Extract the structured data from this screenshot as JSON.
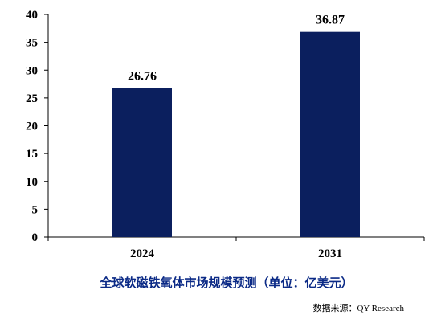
{
  "chart_data": {
    "type": "bar",
    "categories": [
      "2024",
      "2031"
    ],
    "values": [
      26.76,
      36.87
    ],
    "data_labels": [
      "26.76",
      "36.87"
    ],
    "title": "全球软磁铁氧体市场规模预测（单位：亿美元）",
    "xlabel": "",
    "ylabel": "",
    "ylim": [
      0,
      40
    ],
    "yticks": [
      0,
      5,
      10,
      15,
      20,
      25,
      30,
      35,
      40
    ],
    "grid": false,
    "legend": "none",
    "bar_color": "#0b1f5e",
    "title_color": "#0b2a86"
  },
  "source": "数据来源：QY Research"
}
